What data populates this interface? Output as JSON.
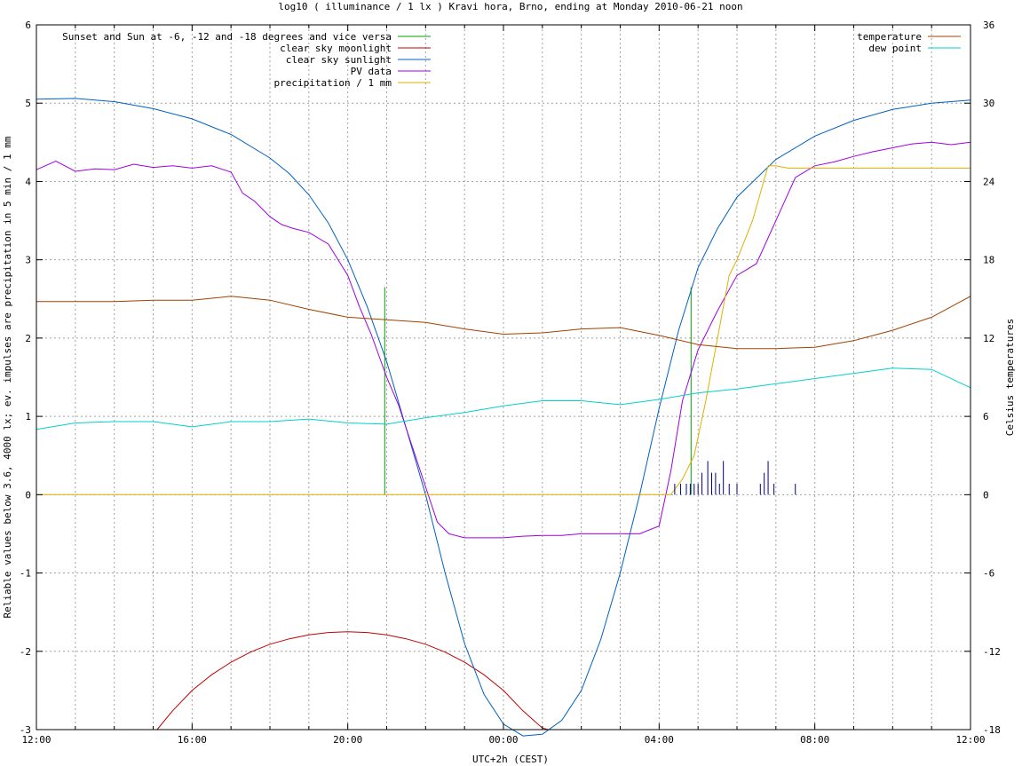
{
  "chart_data": {
    "type": "line",
    "title": "log10 ( illuminance / 1 lx ) Kravi hora, Brno, ending at Monday 2010-06-21 noon",
    "xlabel": "UTC+2h (CEST)",
    "ylabel": "Reliable values below 3.6, 4000 lx; ev. impulses are precipitation in 5 min / 1 mm",
    "y2label": "Celsius temperatures",
    "xlim": [
      12,
      36
    ],
    "ylim": [
      -3,
      6
    ],
    "y2lim": [
      -18,
      36
    ],
    "grid": true,
    "x_ticks": [
      {
        "x": 12,
        "label": "12:00"
      },
      {
        "x": 16,
        "label": "16:00"
      },
      {
        "x": 20,
        "label": "20:00"
      },
      {
        "x": 24,
        "label": "00:00"
      },
      {
        "x": 28,
        "label": "04:00"
      },
      {
        "x": 32,
        "label": "08:00"
      },
      {
        "x": 36,
        "label": "12:00"
      }
    ],
    "y_ticks": [
      "-3",
      "-2",
      "-1",
      "0",
      "1",
      "2",
      "3",
      "4",
      "5",
      "6"
    ],
    "y2_ticks": [
      "-18",
      "-12",
      "-6",
      "0",
      "6",
      "12",
      "18",
      "24",
      "30",
      "36"
    ],
    "legend_left_position": "top-left",
    "legend_right_position": "top-right",
    "series": [
      {
        "name": "Sunset and Sun at -6, -12 and -18 degrees and vice versa",
        "color": "#00a000",
        "axis": "y",
        "impulses": [
          {
            "x": 20.95,
            "y": 2.65
          },
          {
            "x": 22.72,
            "y": 0.0
          },
          {
            "x": 26.95,
            "y": 0.0
          },
          {
            "x": 28.82,
            "y": 2.65
          }
        ]
      },
      {
        "name": "clear sky moonlight",
        "color": "#c00000",
        "axis": "y",
        "x": [
          15.1,
          15.5,
          16.0,
          16.5,
          17.0,
          17.5,
          18.0,
          18.5,
          19.0,
          19.5,
          20.0,
          20.5,
          21.0,
          21.5,
          22.0,
          22.5,
          23.0,
          23.5,
          24.0,
          24.5,
          25.0,
          25.15
        ],
        "y": [
          -3.0,
          -2.76,
          -2.5,
          -2.3,
          -2.14,
          -2.01,
          -1.91,
          -1.84,
          -1.79,
          -1.76,
          -1.75,
          -1.76,
          -1.79,
          -1.84,
          -1.91,
          -2.01,
          -2.14,
          -2.3,
          -2.5,
          -2.76,
          -2.98,
          -3.0
        ]
      },
      {
        "name": "clear sky sunlight",
        "color": "#0060c0",
        "axis": "y",
        "x": [
          12.0,
          13.0,
          14.0,
          15.0,
          16.0,
          17.0,
          18.0,
          18.5,
          19.0,
          19.5,
          20.0,
          20.5,
          21.0,
          21.5,
          22.0,
          22.5,
          23.0,
          23.5,
          24.0,
          24.5,
          25.0,
          25.5,
          26.0,
          26.5,
          27.0,
          27.5,
          28.0,
          28.5,
          29.0,
          29.5,
          30.0,
          31.0,
          32.0,
          33.0,
          34.0,
          35.0,
          36.0
        ],
        "y": [
          5.05,
          5.06,
          5.02,
          4.93,
          4.8,
          4.6,
          4.3,
          4.1,
          3.83,
          3.47,
          3.0,
          2.4,
          1.7,
          0.85,
          0.0,
          -1.0,
          -1.9,
          -2.55,
          -2.93,
          -3.08,
          -3.06,
          -2.88,
          -2.5,
          -1.85,
          -1.0,
          0.0,
          1.1,
          2.1,
          2.9,
          3.4,
          3.8,
          4.28,
          4.58,
          4.78,
          4.92,
          5.0,
          5.04
        ]
      },
      {
        "name": "PV data",
        "color": "#a000e0",
        "axis": "y",
        "x": [
          12.0,
          12.5,
          13.0,
          13.5,
          14.0,
          14.5,
          15.0,
          15.5,
          16.0,
          16.5,
          17.0,
          17.3,
          17.6,
          18.0,
          18.3,
          18.6,
          19.0,
          19.5,
          20.0,
          20.3,
          20.6,
          21.0,
          21.3,
          21.6,
          22.0,
          22.3,
          22.6,
          23.0,
          23.5,
          24.0,
          24.5,
          25.0,
          25.5,
          26.0,
          26.5,
          27.0,
          27.5,
          28.0,
          28.3,
          28.6,
          29.0,
          29.5,
          30.0,
          30.5,
          31.0,
          31.5,
          32.0,
          32.5,
          33.0,
          33.5,
          34.0,
          34.5,
          35.0,
          35.5,
          36.0
        ],
        "y": [
          4.15,
          4.26,
          4.13,
          4.16,
          4.15,
          4.22,
          4.18,
          4.2,
          4.17,
          4.2,
          4.12,
          3.85,
          3.75,
          3.55,
          3.45,
          3.4,
          3.35,
          3.2,
          2.8,
          2.4,
          2.05,
          1.5,
          1.15,
          0.7,
          0.1,
          -0.35,
          -0.5,
          -0.55,
          -0.55,
          -0.55,
          -0.53,
          -0.52,
          -0.52,
          -0.5,
          -0.5,
          -0.5,
          -0.5,
          -0.4,
          0.3,
          1.2,
          1.85,
          2.35,
          2.8,
          2.95,
          3.5,
          4.05,
          4.2,
          4.25,
          4.32,
          4.38,
          4.43,
          4.48,
          4.5,
          4.47,
          4.5
        ]
      },
      {
        "name": "precipitation / 1 mm",
        "color": "#e0b000",
        "axis": "y",
        "x": [
          12.0,
          28.3,
          28.6,
          28.9,
          29.2,
          29.5,
          29.8,
          30.0,
          30.4,
          30.8,
          31.0,
          31.3,
          31.6,
          36.0
        ],
        "y": [
          0.0,
          0.0,
          0.2,
          0.5,
          1.2,
          2.0,
          2.8,
          3.0,
          3.5,
          4.2,
          4.2,
          4.17,
          4.17,
          4.17
        ]
      },
      {
        "name": "temperature",
        "color": "#a04000",
        "axis": "y2",
        "x": [
          12.0,
          13.0,
          14.0,
          15.0,
          16.0,
          17.0,
          18.0,
          19.0,
          20.0,
          21.0,
          22.0,
          23.0,
          24.0,
          25.0,
          26.0,
          27.0,
          28.0,
          29.0,
          30.0,
          31.0,
          32.0,
          33.0,
          34.0,
          35.0,
          36.0
        ],
        "y": [
          14.8,
          14.8,
          14.8,
          14.9,
          14.9,
          15.2,
          14.9,
          14.2,
          13.6,
          13.4,
          13.2,
          12.7,
          12.3,
          12.4,
          12.7,
          12.8,
          12.2,
          11.5,
          11.2,
          11.2,
          11.3,
          11.8,
          12.6,
          13.6,
          15.2
        ]
      },
      {
        "name": "dew point",
        "color": "#00d0d0",
        "axis": "y2",
        "x": [
          12.0,
          13.0,
          14.0,
          15.0,
          16.0,
          17.0,
          18.0,
          19.0,
          20.0,
          21.0,
          22.0,
          23.0,
          24.0,
          25.0,
          26.0,
          27.0,
          28.0,
          29.0,
          30.0,
          31.0,
          32.0,
          33.0,
          34.0,
          35.0,
          36.0
        ],
        "y": [
          5.0,
          5.5,
          5.6,
          5.6,
          5.2,
          5.6,
          5.6,
          5.8,
          5.5,
          5.4,
          5.9,
          6.3,
          6.8,
          7.2,
          7.2,
          6.9,
          7.3,
          7.8,
          8.1,
          8.5,
          8.9,
          9.3,
          9.7,
          9.6,
          8.2
        ]
      },
      {
        "name": "",
        "color": "#000080",
        "axis": "y",
        "impulses": [
          {
            "x": 28.4,
            "y": 0.14
          },
          {
            "x": 28.55,
            "y": 0.14
          },
          {
            "x": 28.7,
            "y": 0.14
          },
          {
            "x": 28.8,
            "y": 0.14
          },
          {
            "x": 28.9,
            "y": 0.14
          },
          {
            "x": 29.0,
            "y": 0.14
          },
          {
            "x": 29.1,
            "y": 0.28
          },
          {
            "x": 29.25,
            "y": 0.43
          },
          {
            "x": 29.35,
            "y": 0.28
          },
          {
            "x": 29.45,
            "y": 0.28
          },
          {
            "x": 29.55,
            "y": 0.14
          },
          {
            "x": 29.65,
            "y": 0.43
          },
          {
            "x": 29.8,
            "y": 0.14
          },
          {
            "x": 30.0,
            "y": 0.14
          },
          {
            "x": 30.6,
            "y": 0.14
          },
          {
            "x": 30.7,
            "y": 0.28
          },
          {
            "x": 30.8,
            "y": 0.43
          },
          {
            "x": 30.95,
            "y": 0.14
          },
          {
            "x": 31.5,
            "y": 0.14
          }
        ]
      }
    ]
  }
}
